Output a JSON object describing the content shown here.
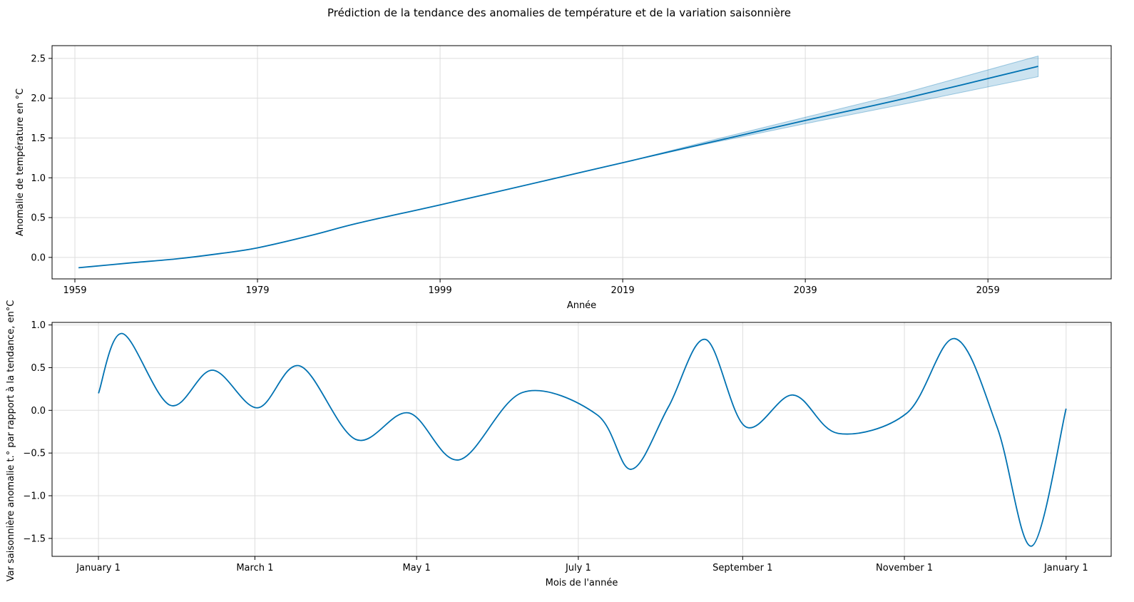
{
  "title": "Prédiction de la tendance des anomalies de température et de la variation saisonnière",
  "colors": {
    "line": "#0072B2",
    "band": "#0072B2",
    "grid": "#dddddd"
  },
  "chart_data": [
    {
      "type": "line",
      "xlabel": "Année",
      "ylabel": "Anomalie de température en °C",
      "xlim": [
        1956.5,
        2072.5
      ],
      "ylim": [
        -0.27,
        2.66
      ],
      "xticks": [
        1959,
        1979,
        1999,
        2019,
        2039,
        2059
      ],
      "xtick_labels": [
        "1959",
        "1979",
        "1999",
        "2019",
        "2039",
        "2059"
      ],
      "yticks": [
        0.0,
        0.5,
        1.0,
        1.5,
        2.0,
        2.5
      ],
      "ytick_labels": [
        "0.0",
        "0.5",
        "1.0",
        "1.5",
        "2.0",
        "2.5"
      ],
      "grid": true,
      "series": [
        {
          "x": [
            1959.4,
            1965,
            1970,
            1975,
            1979,
            1985,
            1990,
            1999,
            2010,
            2019,
            2028,
            2039,
            2050,
            2064.5
          ],
          "y": [
            -0.13,
            -0.07,
            -0.02,
            0.05,
            0.12,
            0.28,
            0.43,
            0.66,
            0.95,
            1.19,
            1.43,
            1.72,
            2.0,
            2.4
          ],
          "lower": [
            -0.13,
            -0.07,
            -0.02,
            0.05,
            0.12,
            0.28,
            0.43,
            0.66,
            0.95,
            1.19,
            1.42,
            1.68,
            1.93,
            2.27
          ],
          "upper": [
            -0.13,
            -0.07,
            -0.02,
            0.05,
            0.12,
            0.28,
            0.43,
            0.66,
            0.95,
            1.19,
            1.45,
            1.76,
            2.07,
            2.53
          ]
        }
      ]
    },
    {
      "type": "line",
      "xlabel": "Mois de l'année",
      "ylabel": "Var saisonnière anomalie t.° par rapport à la tendance, en°C",
      "xlim": [
        -17.5,
        382
      ],
      "ylim": [
        -1.71,
        1.03
      ],
      "xticks": [
        0,
        59,
        120,
        181,
        243,
        304,
        365
      ],
      "xtick_labels": [
        "January 1",
        "March 1",
        "May 1",
        "July 1",
        "September 1",
        "November 1",
        "January 1"
      ],
      "yticks": [
        -1.5,
        -1.0,
        -0.5,
        0.0,
        0.5,
        1.0
      ],
      "ytick_labels": [
        "−1.5",
        "−1.0",
        "−0.5",
        "0.0",
        "0.5",
        "1.0"
      ],
      "grid": true,
      "series": [
        {
          "x": [
            0,
            9,
            27,
            43,
            60,
            76,
            97,
            117,
            136,
            160,
            188,
            201,
            215,
            229,
            244,
            262,
            279,
            305,
            323,
            339,
            352,
            365
          ],
          "y": [
            0.2,
            0.9,
            0.06,
            0.47,
            0.03,
            0.52,
            -0.34,
            -0.03,
            -0.58,
            0.21,
            -0.05,
            -0.69,
            0.04,
            0.83,
            -0.19,
            0.18,
            -0.27,
            -0.03,
            0.84,
            -0.2,
            -1.59,
            0.02
          ]
        }
      ]
    }
  ]
}
